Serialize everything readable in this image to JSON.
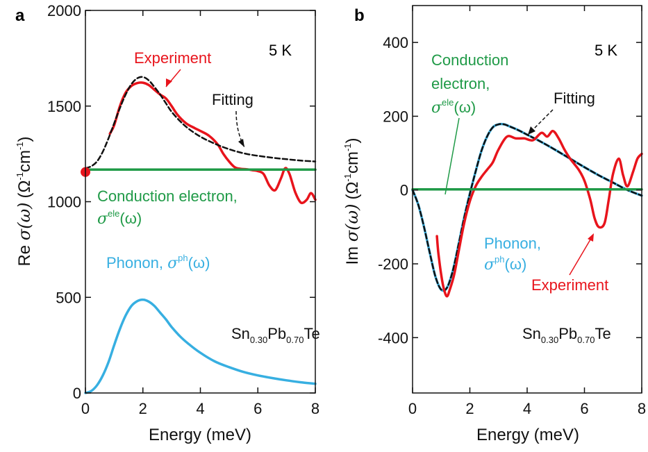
{
  "colors": {
    "experiment": "#e8141c",
    "fitting": "#111111",
    "conduction": "#1f9a47",
    "phonon": "#37afe1"
  },
  "chart_data": [
    {
      "type": "line",
      "panel": "a",
      "xlabel": "Energy (meV)",
      "ylabel": {
        "pre": "Re ",
        "sigma": "σ",
        "omega": "(ω)",
        "unit": "(Ω",
        "sup1": "-1",
        "cm": "cm",
        "sup2": "-1",
        "close": ")"
      },
      "xlim": [
        0,
        8
      ],
      "ylim": [
        0,
        2000
      ],
      "xticks": [
        "0",
        "2",
        "4",
        "6",
        "8"
      ],
      "yticks": [
        "0",
        "500",
        "1000",
        "1500",
        "2000"
      ],
      "temperature": "5 K",
      "sample": {
        "a": "Sn",
        "a_sub": "0.30",
        "b": "Pb",
        "b_sub": "0.70",
        "c": "Te"
      },
      "annotations": {
        "experiment": "Experiment",
        "fitting": "Fitting",
        "conduction": "Conduction electron,",
        "conduction_sym": {
          "sigma": "σ",
          "sup": "ele",
          "omega": "(ω)"
        },
        "phonon": "Phonon, ",
        "phonon_sym": {
          "sigma": "σ",
          "sup": "ph",
          "omega": "(ω)"
        }
      },
      "series": [
        {
          "name": "Experiment",
          "color": "#e8141c",
          "x": [
            0.85,
            1.0,
            1.2,
            1.4,
            1.6,
            1.8,
            2.0,
            2.2,
            2.4,
            2.6,
            2.8,
            3.0,
            3.2,
            3.5,
            3.8,
            4.0,
            4.3,
            4.6,
            4.8,
            5.0,
            5.2,
            5.4,
            5.6,
            5.8,
            6.0,
            6.2,
            6.4,
            6.6,
            6.8,
            6.95,
            7.1,
            7.3,
            7.5,
            7.7,
            7.85,
            8.0
          ],
          "y": [
            1355,
            1400,
            1500,
            1570,
            1605,
            1620,
            1622,
            1610,
            1585,
            1560,
            1540,
            1500,
            1455,
            1410,
            1385,
            1370,
            1345,
            1300,
            1250,
            1210,
            1180,
            1172,
            1170,
            1165,
            1160,
            1145,
            1085,
            1060,
            1120,
            1175,
            1145,
            1050,
            995,
            1010,
            1045,
            1010
          ]
        },
        {
          "name": "Fitting",
          "color": "#111111",
          "dashed": true,
          "x": [
            0.0,
            0.2,
            0.4,
            0.6,
            0.8,
            1.0,
            1.2,
            1.4,
            1.6,
            1.8,
            2.0,
            2.2,
            2.4,
            2.6,
            2.8,
            3.0,
            3.3,
            3.6,
            4.0,
            4.4,
            4.8,
            5.2,
            5.6,
            6.0,
            6.5,
            7.0,
            7.5,
            8.0
          ],
          "y": [
            1175,
            1185,
            1210,
            1260,
            1330,
            1410,
            1490,
            1560,
            1615,
            1645,
            1652,
            1635,
            1600,
            1560,
            1515,
            1470,
            1420,
            1380,
            1340,
            1310,
            1285,
            1265,
            1250,
            1240,
            1230,
            1222,
            1215,
            1210
          ]
        },
        {
          "name": "Conduction electron",
          "color": "#1f9a47",
          "x": [
            0,
            8
          ],
          "y": [
            1168,
            1168
          ]
        },
        {
          "name": "Phonon",
          "color": "#37afe1",
          "x": [
            0.0,
            0.2,
            0.4,
            0.6,
            0.8,
            1.0,
            1.2,
            1.4,
            1.6,
            1.8,
            2.0,
            2.2,
            2.4,
            2.6,
            2.8,
            3.0,
            3.3,
            3.6,
            4.0,
            4.5,
            5.0,
            5.5,
            6.0,
            6.5,
            7.0,
            7.5,
            8.0
          ],
          "y": [
            0,
            10,
            40,
            90,
            160,
            250,
            335,
            405,
            455,
            480,
            488,
            478,
            455,
            420,
            385,
            345,
            295,
            255,
            210,
            165,
            135,
            110,
            92,
            78,
            66,
            56,
            48
          ]
        }
      ],
      "points": [
        {
          "name": "DC conductivity",
          "x": 0,
          "y": 1155,
          "color": "#e8141c"
        }
      ]
    },
    {
      "type": "line",
      "panel": "b",
      "xlabel": "Energy (meV)",
      "ylabel": {
        "pre": "Im ",
        "sigma": "σ",
        "omega": "(ω)",
        "unit": "(Ω",
        "sup1": "-1",
        "cm": "cm",
        "sup2": "-1",
        "close": ")"
      },
      "xlim": [
        0,
        8
      ],
      "ylim": [
        -550,
        500
      ],
      "xticks": [
        "0",
        "2",
        "4",
        "6",
        "8"
      ],
      "yticks": [
        "-400",
        "-200",
        "0",
        "200",
        "400"
      ],
      "temperature": "5 K",
      "sample": {
        "a": "Sn",
        "a_sub": "0.30",
        "b": "Pb",
        "b_sub": "0.70",
        "c": "Te"
      },
      "annotations": {
        "experiment": "Experiment",
        "fitting": "Fitting",
        "conduction1": "Conduction",
        "conduction2": "electron,",
        "conduction_sym": {
          "sigma": "σ",
          "sup": "ele",
          "omega": "(ω)"
        },
        "phonon": "Phonon,",
        "phonon_sym": {
          "sigma": "σ",
          "sup": "ph",
          "omega": "(ω)"
        }
      },
      "series": [
        {
          "name": "Phonon",
          "color": "#37afe1",
          "x": [
            0.0,
            0.2,
            0.4,
            0.6,
            0.8,
            1.0,
            1.2,
            1.4,
            1.6,
            1.8,
            2.0,
            2.2,
            2.4,
            2.6,
            2.8,
            3.0,
            3.2,
            3.4,
            3.7,
            4.0,
            4.5,
            5.0,
            5.5,
            6.0,
            6.5,
            7.0,
            7.5,
            8.0
          ],
          "y": [
            0,
            -40,
            -100,
            -170,
            -235,
            -270,
            -265,
            -220,
            -150,
            -75,
            -10,
            50,
            105,
            145,
            170,
            178,
            178,
            172,
            162,
            150,
            130,
            108,
            85,
            62,
            40,
            20,
            0,
            -15
          ]
        },
        {
          "name": "Fitting",
          "color": "#111111",
          "dashed": true,
          "x": [
            0.0,
            0.2,
            0.4,
            0.6,
            0.8,
            1.0,
            1.2,
            1.4,
            1.6,
            1.8,
            2.0,
            2.2,
            2.4,
            2.6,
            2.8,
            3.0,
            3.2,
            3.4,
            3.7,
            4.0,
            4.5,
            5.0,
            5.5,
            6.0,
            6.5,
            7.0,
            7.5,
            8.0
          ],
          "y": [
            0,
            -40,
            -100,
            -170,
            -235,
            -270,
            -265,
            -220,
            -150,
            -75,
            -10,
            50,
            105,
            145,
            170,
            178,
            178,
            172,
            162,
            150,
            130,
            108,
            85,
            62,
            40,
            20,
            0,
            -15
          ]
        },
        {
          "name": "Experiment",
          "color": "#e8141c",
          "x": [
            0.85,
            0.9,
            1.0,
            1.1,
            1.2,
            1.3,
            1.45,
            1.6,
            1.8,
            2.0,
            2.2,
            2.4,
            2.6,
            2.8,
            3.0,
            3.3,
            3.6,
            3.9,
            4.2,
            4.5,
            4.7,
            4.9,
            5.1,
            5.3,
            5.5,
            5.8,
            6.0,
            6.2,
            6.35,
            6.5,
            6.7,
            6.85,
            7.0,
            7.2,
            7.35,
            7.5,
            7.7,
            7.85,
            8.0
          ],
          "y": [
            -125,
            -170,
            -230,
            -270,
            -288,
            -270,
            -230,
            -170,
            -90,
            -30,
            10,
            35,
            55,
            75,
            110,
            145,
            140,
            140,
            135,
            155,
            145,
            160,
            140,
            110,
            85,
            55,
            25,
            -25,
            -75,
            -100,
            -90,
            -25,
            45,
            85,
            40,
            10,
            50,
            85,
            98
          ]
        },
        {
          "name": "Conduction electron",
          "color": "#1f9a47",
          "x": [
            0,
            8
          ],
          "y": [
            2,
            2
          ]
        }
      ]
    }
  ]
}
